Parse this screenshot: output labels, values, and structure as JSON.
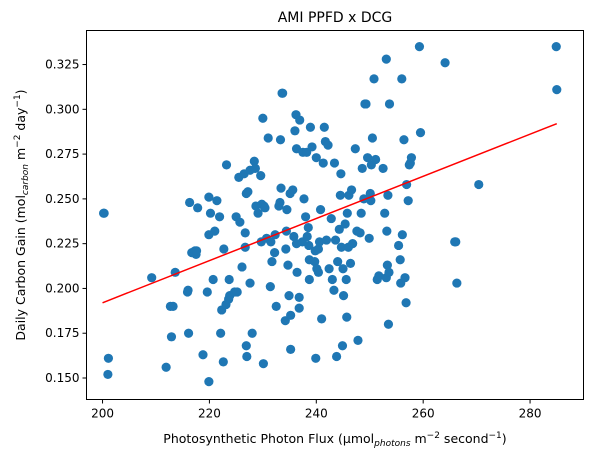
{
  "chart_data": {
    "type": "scatter",
    "title": "AMI PPFD x DCG",
    "xlabel": {
      "pre": "Photosynthetic Photon Flux (µmol",
      "sub": "photons",
      "mid": " m",
      "sup1": "−2",
      "post": " second",
      "sup2": "−1",
      "end": ")"
    },
    "ylabel": {
      "pre": "Daily Carbon Gain (mol",
      "sub": "carbon",
      "mid": " m",
      "sup1": "−2",
      "post": " day",
      "sup2": "−1",
      "end": ")"
    },
    "xlim": [
      197,
      290
    ],
    "ylim": [
      0.138,
      0.344
    ],
    "xticks": [
      {
        "value": 200,
        "label": "200"
      },
      {
        "value": 220,
        "label": "220"
      },
      {
        "value": 240,
        "label": "240"
      },
      {
        "value": 260,
        "label": "260"
      },
      {
        "value": 280,
        "label": "280"
      }
    ],
    "yticks": [
      {
        "value": 0.15,
        "label": "0.150"
      },
      {
        "value": 0.175,
        "label": "0.175"
      },
      {
        "value": 0.2,
        "label": "0.200"
      },
      {
        "value": 0.225,
        "label": "0.225"
      },
      {
        "value": 0.25,
        "label": "0.250"
      },
      {
        "value": 0.275,
        "label": "0.275"
      },
      {
        "value": 0.3,
        "label": "0.300"
      },
      {
        "value": 0.325,
        "label": "0.325"
      }
    ],
    "grid": false,
    "point_color": "#1f77b4",
    "trend_color": "#ff0000",
    "trendline": {
      "x": [
        200,
        285
      ],
      "y": [
        0.192,
        0.292
      ]
    },
    "points": [
      [
        200.2,
        0.242
      ],
      [
        200.3,
        0.242
      ],
      [
        201.1,
        0.161
      ],
      [
        201.0,
        0.152
      ],
      [
        209.2,
        0.206
      ],
      [
        211.9,
        0.156
      ],
      [
        212.7,
        0.19
      ],
      [
        212.9,
        0.173
      ],
      [
        213.2,
        0.19
      ],
      [
        213.6,
        0.209
      ],
      [
        215.9,
        0.198
      ],
      [
        216.0,
        0.199
      ],
      [
        216.1,
        0.175
      ],
      [
        216.3,
        0.248
      ],
      [
        216.7,
        0.22
      ],
      [
        217.3,
        0.221
      ],
      [
        217.5,
        0.219
      ],
      [
        217.6,
        0.221
      ],
      [
        217.8,
        0.245
      ],
      [
        218.8,
        0.163
      ],
      [
        219.6,
        0.198
      ],
      [
        219.9,
        0.148
      ],
      [
        219.9,
        0.23
      ],
      [
        219.9,
        0.251
      ],
      [
        220.2,
        0.242
      ],
      [
        220.7,
        0.205
      ],
      [
        221.0,
        0.232
      ],
      [
        221.4,
        0.249
      ],
      [
        221.9,
        0.24
      ],
      [
        222.1,
        0.175
      ],
      [
        222.3,
        0.188
      ],
      [
        222.6,
        0.159
      ],
      [
        222.7,
        0.222
      ],
      [
        223.1,
        0.191
      ],
      [
        223.2,
        0.269
      ],
      [
        223.6,
        0.194
      ],
      [
        223.7,
        0.205
      ],
      [
        223.8,
        0.196
      ],
      [
        224.7,
        0.198
      ],
      [
        225.0,
        0.24
      ],
      [
        225.2,
        0.198
      ],
      [
        225.5,
        0.262
      ],
      [
        225.7,
        0.237
      ],
      [
        226.1,
        0.212
      ],
      [
        226.5,
        0.264
      ],
      [
        226.7,
        0.223
      ],
      [
        226.7,
        0.231
      ],
      [
        226.9,
        0.253
      ],
      [
        226.9,
        0.168
      ],
      [
        227.0,
        0.162
      ],
      [
        227.2,
        0.254
      ],
      [
        227.6,
        0.266
      ],
      [
        227.6,
        0.203
      ],
      [
        228.0,
        0.175
      ],
      [
        228.4,
        0.271
      ],
      [
        228.6,
        0.267
      ],
      [
        228.7,
        0.246
      ],
      [
        229.1,
        0.242
      ],
      [
        229.6,
        0.263
      ],
      [
        229.7,
        0.226
      ],
      [
        229.8,
        0.247
      ],
      [
        230.0,
        0.295
      ],
      [
        230.1,
        0.158
      ],
      [
        230.2,
        0.246
      ],
      [
        230.4,
        0.245
      ],
      [
        230.7,
        0.228
      ],
      [
        231.0,
        0.284
      ],
      [
        231.4,
        0.201
      ],
      [
        231.5,
        0.226
      ],
      [
        231.7,
        0.215
      ],
      [
        232.2,
        0.22
      ],
      [
        232.3,
        0.23
      ],
      [
        232.5,
        0.19
      ],
      [
        233.0,
        0.246
      ],
      [
        233.2,
        0.248
      ],
      [
        233.3,
        0.283
      ],
      [
        233.4,
        0.256
      ],
      [
        233.6,
        0.309
      ],
      [
        233.7,
        0.309
      ],
      [
        234.2,
        0.182
      ],
      [
        234.3,
        0.222
      ],
      [
        234.4,
        0.232
      ],
      [
        234.5,
        0.244
      ],
      [
        234.7,
        0.213
      ],
      [
        234.9,
        0.196
      ],
      [
        235.1,
        0.253
      ],
      [
        235.2,
        0.166
      ],
      [
        235.2,
        0.185
      ],
      [
        235.6,
        0.255
      ],
      [
        235.8,
        0.229
      ],
      [
        236.0,
        0.288
      ],
      [
        236.2,
        0.297
      ],
      [
        236.3,
        0.225
      ],
      [
        236.3,
        0.278
      ],
      [
        236.4,
        0.209
      ],
      [
        236.8,
        0.195
      ],
      [
        236.8,
        0.189
      ],
      [
        236.9,
        0.294
      ],
      [
        237.4,
        0.226
      ],
      [
        237.5,
        0.276
      ],
      [
        237.7,
        0.25
      ],
      [
        238.0,
        0.24
      ],
      [
        238.2,
        0.276
      ],
      [
        238.3,
        0.229
      ],
      [
        238.5,
        0.234
      ],
      [
        238.6,
        0.224
      ],
      [
        238.7,
        0.216
      ],
      [
        238.7,
        0.205
      ],
      [
        238.9,
        0.29
      ],
      [
        239.2,
        0.279
      ],
      [
        239.7,
        0.215
      ],
      [
        239.8,
        0.221
      ],
      [
        239.9,
        0.161
      ],
      [
        240.0,
        0.273
      ],
      [
        240.1,
        0.211
      ],
      [
        240.4,
        0.222
      ],
      [
        240.4,
        0.209
      ],
      [
        240.6,
        0.226
      ],
      [
        240.8,
        0.244
      ],
      [
        241.0,
        0.183
      ],
      [
        241.3,
        0.27
      ],
      [
        241.5,
        0.29
      ],
      [
        241.7,
        0.282
      ],
      [
        241.9,
        0.227
      ],
      [
        242.2,
        0.28
      ],
      [
        242.4,
        0.211
      ],
      [
        242.8,
        0.239
      ],
      [
        243.0,
        0.205
      ],
      [
        243.3,
        0.199
      ],
      [
        243.4,
        0.27
      ],
      [
        243.6,
        0.227
      ],
      [
        243.8,
        0.162
      ],
      [
        244.0,
        0.215
      ],
      [
        244.3,
        0.233
      ],
      [
        244.5,
        0.252
      ],
      [
        244.6,
        0.264
      ],
      [
        244.7,
        0.223
      ],
      [
        244.9,
        0.168
      ],
      [
        245.0,
        0.211
      ],
      [
        245.1,
        0.196
      ],
      [
        245.4,
        0.236
      ],
      [
        245.6,
        0.205
      ],
      [
        245.7,
        0.184
      ],
      [
        245.8,
        0.242
      ],
      [
        246.0,
        0.223
      ],
      [
        246.1,
        0.252
      ],
      [
        246.4,
        0.214
      ],
      [
        246.6,
        0.255
      ],
      [
        246.8,
        0.225
      ],
      [
        247.3,
        0.278
      ],
      [
        247.6,
        0.232
      ],
      [
        247.8,
        0.171
      ],
      [
        248.2,
        0.231
      ],
      [
        248.4,
        0.242
      ],
      [
        248.6,
        0.267
      ],
      [
        248.9,
        0.25
      ],
      [
        249.1,
        0.303
      ],
      [
        249.3,
        0.303
      ],
      [
        249.6,
        0.273
      ],
      [
        249.9,
        0.228
      ],
      [
        250.1,
        0.253
      ],
      [
        250.2,
        0.249
      ],
      [
        250.3,
        0.269
      ],
      [
        250.5,
        0.284
      ],
      [
        250.8,
        0.317
      ],
      [
        251.1,
        0.272
      ],
      [
        251.4,
        0.205
      ],
      [
        251.7,
        0.207
      ],
      [
        252.5,
        0.267
      ],
      [
        252.8,
        0.242
      ],
      [
        253.1,
        0.328
      ],
      [
        253.1,
        0.206
      ],
      [
        253.2,
        0.232
      ],
      [
        253.3,
        0.213
      ],
      [
        253.4,
        0.252
      ],
      [
        253.5,
        0.18
      ],
      [
        253.6,
        0.209
      ],
      [
        253.7,
        0.303
      ],
      [
        255.4,
        0.224
      ],
      [
        255.7,
        0.216
      ],
      [
        255.8,
        0.203
      ],
      [
        256.0,
        0.317
      ],
      [
        256.1,
        0.23
      ],
      [
        256.4,
        0.283
      ],
      [
        256.6,
        0.206
      ],
      [
        256.8,
        0.192
      ],
      [
        256.9,
        0.258
      ],
      [
        257.2,
        0.249
      ],
      [
        257.4,
        0.269
      ],
      [
        257.6,
        0.27
      ],
      [
        257.8,
        0.273
      ],
      [
        259.3,
        0.335
      ],
      [
        259.5,
        0.287
      ],
      [
        264.1,
        0.326
      ],
      [
        265.9,
        0.226
      ],
      [
        266.1,
        0.226
      ],
      [
        266.3,
        0.203
      ],
      [
        270.4,
        0.258
      ],
      [
        284.9,
        0.335
      ],
      [
        285.0,
        0.311
      ]
    ]
  }
}
